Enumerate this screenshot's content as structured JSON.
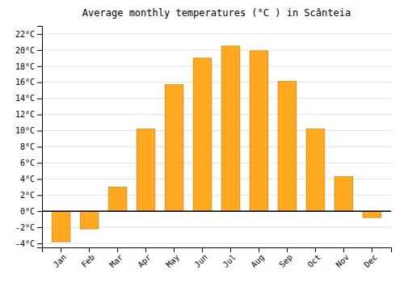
{
  "chart_data": {
    "type": "bar",
    "title": "Average monthly temperatures (°C ) in Scânteia",
    "categories": [
      "Jan",
      "Feb",
      "Mar",
      "Apr",
      "May",
      "Jun",
      "Jul",
      "Aug",
      "Sep",
      "Oct",
      "Nov",
      "Dec"
    ],
    "values": [
      -3.8,
      -2.2,
      3.0,
      10.2,
      15.7,
      19.0,
      20.5,
      19.9,
      16.1,
      10.2,
      4.3,
      -0.8
    ],
    "color": "#FFA820",
    "ylim": [
      -4.5,
      23
    ],
    "yticks": [
      {
        "value": -4,
        "label": "-4°C"
      },
      {
        "value": -2,
        "label": "-2°C"
      },
      {
        "value": 0,
        "label": "0°C"
      },
      {
        "value": 2,
        "label": "2°C"
      },
      {
        "value": 4,
        "label": "4°C"
      },
      {
        "value": 6,
        "label": "6°C"
      },
      {
        "value": 8,
        "label": "8°C"
      },
      {
        "value": 10,
        "label": "10°C"
      },
      {
        "value": 12,
        "label": "12°C"
      },
      {
        "value": 14,
        "label": "14°C"
      },
      {
        "value": 16,
        "label": "16°C"
      },
      {
        "value": 18,
        "label": "18°C"
      },
      {
        "value": 20,
        "label": "20°C"
      },
      {
        "value": 22,
        "label": "22°C"
      }
    ],
    "grid": true
  }
}
